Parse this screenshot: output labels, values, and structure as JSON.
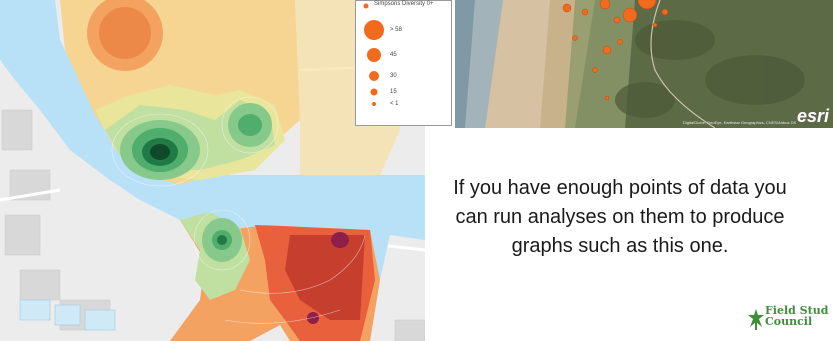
{
  "legend": {
    "title": "Simpsons Diversity 0+",
    "items": [
      {
        "label": "> 58"
      },
      {
        "label": "45"
      },
      {
        "label": "30"
      },
      {
        "label": "15"
      },
      {
        "label": "< 1"
      }
    ],
    "marker_color": "#f26a1b"
  },
  "aerial": {
    "attribution": "DigitalGlobe, GeoEye, Earthstar Geographics, CNES/Airbus DS",
    "logo_text": "esri"
  },
  "caption": {
    "text": "If you have enough points of data you can run analyses on them to produce graphs such as this one."
  },
  "logo": {
    "line1": "Field Stud",
    "line2": "Council",
    "color": "#3f8f3a"
  },
  "heatmap": {
    "palette": [
      "#c0392b",
      "#e8603c",
      "#f4a261",
      "#f6d28a",
      "#e9e59a",
      "#bfe0a0",
      "#87c98a",
      "#4fae6b",
      "#1f7a45",
      "#0e4a2a"
    ],
    "hotspot_color": "#8e1f4b",
    "water_color": "#b8e1f7"
  }
}
